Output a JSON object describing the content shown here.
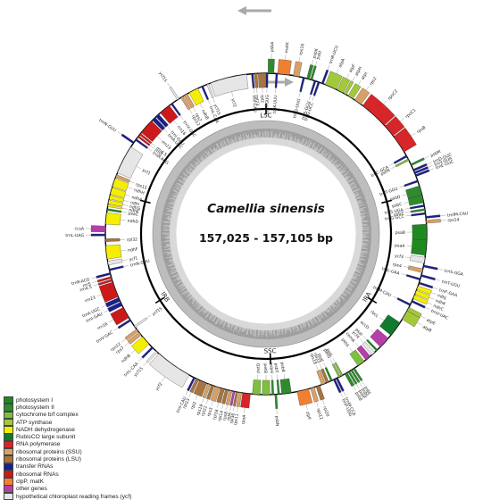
{
  "title": "Camellia sinensis",
  "size_label": "157,025 - 157,105 bp",
  "regions": {
    "lsc": "LSC",
    "ssc": "SSC",
    "ira": "IRA",
    "irb": "IRB"
  },
  "legend": [
    {
      "label": "photosystem I",
      "color": "#1f8a1f"
    },
    {
      "label": "photosystem II",
      "color": "#2e8b2e"
    },
    {
      "label": "cytochrome b/f complex",
      "color": "#7fbf3f"
    },
    {
      "label": "ATP synthase",
      "color": "#a3c93a"
    },
    {
      "label": "NADH dehydrogenase",
      "color": "#f5ee00"
    },
    {
      "label": "RubisCO large subunit",
      "color": "#117a2e"
    },
    {
      "label": "RNA polymerase",
      "color": "#d6262a"
    },
    {
      "label": "ribosomal proteins (SSU)",
      "color": "#d9a066"
    },
    {
      "label": "ribosomal proteins (LSU)",
      "color": "#a8743f"
    },
    {
      "label": "transfer RNAs",
      "color": "#1a1f8c"
    },
    {
      "label": "ribosomal RNAs",
      "color": "#cc1a1a"
    },
    {
      "label": "clpP, matK",
      "color": "#f08030"
    },
    {
      "label": "other genes",
      "color": "#b43fa8"
    },
    {
      "label": "hypothetical chloroplast reading frames (ycf)",
      "color": "#e6e6e6"
    }
  ],
  "genes": [
    {
      "name": "psbA",
      "a0": 1,
      "a1": 4,
      "out": true,
      "c": "#2e8b2e"
    },
    {
      "name": "trnH-GUG",
      "a0": 0,
      "a1": 1,
      "out": false,
      "c": "#1a1f8c"
    },
    {
      "name": "trnK-UUU",
      "a0": 5,
      "a1": 6,
      "out": false,
      "c": "#1a1f8c"
    },
    {
      "name": "matK",
      "a0": 6,
      "a1": 12,
      "out": true,
      "c": "#f08030"
    },
    {
      "name": "rps16",
      "a0": 14,
      "a1": 17,
      "out": true,
      "c": "#d9a066"
    },
    {
      "name": "trnQ-UUG",
      "a0": 19,
      "a1": 20,
      "out": false,
      "c": "#1a1f8c"
    },
    {
      "name": "psbK",
      "a0": 21,
      "a1": 22.5,
      "out": true,
      "c": "#2e8b2e"
    },
    {
      "name": "psbI",
      "a0": 23,
      "a1": 24,
      "out": true,
      "c": "#2e8b2e"
    },
    {
      "name": "trnS-GCU",
      "a0": 25,
      "a1": 26,
      "out": false,
      "c": "#1a1f8c"
    },
    {
      "name": "trnG-UCC",
      "a0": 27,
      "a1": 28,
      "out": false,
      "c": "#1a1f8c"
    },
    {
      "name": "trnR-UCU",
      "a0": 29,
      "a1": 30,
      "out": true,
      "c": "#1a1f8c"
    },
    {
      "name": "atpA",
      "a0": 31,
      "a1": 37,
      "out": true,
      "c": "#a3c93a"
    },
    {
      "name": "atpF",
      "a0": 37.5,
      "a1": 41,
      "out": true,
      "c": "#a3c93a"
    },
    {
      "name": "atpH",
      "a0": 41.5,
      "a1": 43,
      "out": true,
      "c": "#a3c93a"
    },
    {
      "name": "atpI",
      "a0": 44,
      "a1": 47,
      "out": true,
      "c": "#a3c93a"
    },
    {
      "name": "rps2",
      "a0": 48,
      "a1": 52,
      "out": true,
      "c": "#d9a066"
    },
    {
      "name": "rpoC2",
      "a0": 53,
      "a1": 68,
      "out": true,
      "c": "#d6262a"
    },
    {
      "name": "rpoC1",
      "a0": 68.5,
      "a1": 75,
      "out": true,
      "c": "#d6262a"
    },
    {
      "name": "rpoB",
      "a0": 75.5,
      "a1": 85,
      "out": true,
      "c": "#d6262a"
    },
    {
      "name": "trnC-GCA",
      "a0": 87,
      "a1": 88,
      "out": false,
      "c": "#1a1f8c"
    },
    {
      "name": "petN",
      "a0": 89,
      "a1": 90,
      "out": false,
      "c": "#7fbf3f"
    },
    {
      "name": "psbM",
      "a0": 92,
      "a1": 93,
      "out": true,
      "c": "#2e8b2e"
    },
    {
      "name": "trnD-GUC",
      "a0": 95,
      "a1": 96,
      "out": true,
      "c": "#1a1f8c"
    },
    {
      "name": "trnY-GUA",
      "a0": 96.5,
      "a1": 97.5,
      "out": true,
      "c": "#1a1f8c"
    },
    {
      "name": "trnE-UUC",
      "a0": 98,
      "a1": 99,
      "out": true,
      "c": "#1a1f8c"
    },
    {
      "name": "trnT-GGU",
      "a0": 101,
      "a1": 102,
      "out": false,
      "c": "#1a1f8c"
    },
    {
      "name": "psbD",
      "a0": 104,
      "a1": 109,
      "out": false,
      "c": "#2e8b2e"
    },
    {
      "name": "psbC",
      "a0": 109,
      "a1": 113,
      "out": false,
      "c": "#2e8b2e"
    },
    {
      "name": "trnS-UGA",
      "a0": 114,
      "a1": 115,
      "out": false,
      "c": "#1a1f8c"
    },
    {
      "name": "psbZ",
      "a0": 116,
      "a1": 117,
      "out": false,
      "c": "#2e8b2e"
    },
    {
      "name": "trnG-GCC",
      "a0": 118,
      "a1": 119,
      "out": false,
      "c": "#1a1f8c"
    },
    {
      "name": "trnfM-CAU",
      "a0": 120,
      "a1": 121,
      "out": true,
      "c": "#1a1f8c"
    },
    {
      "name": "rps14",
      "a0": 122,
      "a1": 123.5,
      "out": true,
      "c": "#d9a066"
    },
    {
      "name": "psaB",
      "a0": 124,
      "a1": 132,
      "out": false,
      "c": "#1f8a1f"
    },
    {
      "name": "psaA",
      "a0": 132,
      "a1": 140,
      "out": false,
      "c": "#1f8a1f"
    },
    {
      "name": "ycf3",
      "a0": 141,
      "a1": 144,
      "out": false,
      "c": "#e6e6e6"
    },
    {
      "name": "trnS-GGA",
      "a0": 145,
      "a1": 146,
      "out": true,
      "c": "#1a1f8c"
    },
    {
      "name": "rps4",
      "a0": 147,
      "a1": 149,
      "out": false,
      "c": "#d9a066"
    },
    {
      "name": "trnT-UGU",
      "a0": 150,
      "a1": 151,
      "out": true,
      "c": "#1a1f8c"
    },
    {
      "name": "trnL-UAA",
      "a0": 152,
      "a1": 153,
      "out": false,
      "c": "#1a1f8c"
    },
    {
      "name": "trnF-GAA",
      "a0": 154,
      "a1": 155,
      "out": true,
      "c": "#1a1f8c"
    },
    {
      "name": "ndhJ",
      "a0": 156,
      "a1": 158,
      "out": true,
      "c": "#f5ee00"
    },
    {
      "name": "ndhK",
      "a0": 158.5,
      "a1": 160.5,
      "out": true,
      "c": "#f5ee00"
    },
    {
      "name": "ndhC",
      "a0": 161,
      "a1": 163,
      "out": true,
      "c": "#f5ee00"
    },
    {
      "name": "trnV-UAC",
      "a0": 164,
      "a1": 165,
      "out": true,
      "c": "#1a1f8c"
    },
    {
      "name": "trnM-CAU",
      "a0": 166,
      "a1": 167,
      "out": false,
      "c": "#1a1f8c"
    },
    {
      "name": "atpE",
      "a0": 168,
      "a1": 170,
      "out": true,
      "c": "#a3c93a"
    },
    {
      "name": "atpB",
      "a0": 170,
      "a1": 175,
      "out": true,
      "c": "#a3c93a"
    },
    {
      "name": "rbcL",
      "a0": 177,
      "a1": 185,
      "out": false,
      "c": "#117a2e"
    },
    {
      "name": "accD",
      "a0": 187,
      "a1": 193,
      "out": false,
      "c": "#b43fa8"
    },
    {
      "name": "psaI",
      "a0": 195,
      "a1": 196,
      "out": false,
      "c": "#1f8a1f"
    },
    {
      "name": "ycf4",
      "a0": 197,
      "a1": 199,
      "out": false,
      "c": "#e6e6e6"
    },
    {
      "name": "cemA",
      "a0": 200,
      "a1": 203,
      "out": false,
      "c": "#b43fa8"
    },
    {
      "name": "petA",
      "a0": 204,
      "a1": 208,
      "out": false,
      "c": "#7fbf3f"
    },
    {
      "name": "psbJ",
      "a0": 210,
      "a1": 211,
      "out": true,
      "c": "#2e8b2e"
    },
    {
      "name": "psbL",
      "a0": 211.5,
      "a1": 212.5,
      "out": true,
      "c": "#2e8b2e"
    },
    {
      "name": "psbF",
      "a0": 213,
      "a1": 214,
      "out": true,
      "c": "#2e8b2e"
    },
    {
      "name": "psbE",
      "a0": 214.5,
      "a1": 216,
      "out": true,
      "c": "#2e8b2e"
    },
    {
      "name": "petL",
      "a0": 217,
      "a1": 218,
      "out": false,
      "c": "#7fbf3f"
    },
    {
      "name": "petG",
      "a0": 218.5,
      "a1": 219.5,
      "out": false,
      "c": "#7fbf3f"
    },
    {
      "name": "trnW-CCA",
      "a0": 220,
      "a1": 221,
      "out": true,
      "c": "#1a1f8c"
    },
    {
      "name": "trnP-UGG",
      "a0": 221.5,
      "a1": 222.5,
      "out": true,
      "c": "#1a1f8c"
    },
    {
      "name": "psaJ",
      "a0": 223,
      "a1": 224,
      "out": false,
      "c": "#1f8a1f"
    },
    {
      "name": "rpl33",
      "a0": 225,
      "a1": 226.5,
      "out": false,
      "c": "#a8743f"
    },
    {
      "name": "rps18",
      "a0": 227,
      "a1": 229,
      "out": false,
      "c": "#d9a066"
    },
    {
      "name": "rpl20",
      "a0": 230,
      "a1": 232,
      "out": true,
      "c": "#a8743f"
    },
    {
      "name": "rps12",
      "a0": 233,
      "a1": 235,
      "out": true,
      "c": "#d9a066"
    },
    {
      "name": "clpP",
      "a0": 236,
      "a1": 242,
      "out": true,
      "c": "#f08030"
    },
    {
      "name": "psbB",
      "a0": 245,
      "a1": 250,
      "out": false,
      "c": "#2e8b2e"
    },
    {
      "name": "psbT",
      "a0": 251,
      "a1": 252,
      "out": false,
      "c": "#2e8b2e"
    },
    {
      "name": "psbN",
      "a0": 252.5,
      "a1": 253.5,
      "out": true,
      "c": "#2e8b2e"
    },
    {
      "name": "psbH",
      "a0": 254,
      "a1": 255,
      "out": false,
      "c": "#2e8b2e"
    },
    {
      "name": "petB",
      "a0": 256,
      "a1": 260,
      "out": false,
      "c": "#7fbf3f"
    },
    {
      "name": "petD",
      "a0": 261,
      "a1": 265,
      "out": false,
      "c": "#7fbf3f"
    },
    {
      "name": "rpoA",
      "a0": 266,
      "a1": 270,
      "out": true,
      "c": "#d6262a"
    },
    {
      "name": "rps11",
      "a0": 270.5,
      "a1": 272,
      "out": true,
      "c": "#d9a066"
    },
    {
      "name": "rpl36",
      "a0": 272.5,
      "a1": 273.5,
      "out": true,
      "c": "#a8743f"
    },
    {
      "name": "infA",
      "a0": 274,
      "a1": 275,
      "out": true,
      "c": "#b43fa8"
    },
    {
      "name": "rps8",
      "a0": 275.5,
      "a1": 277,
      "out": true,
      "c": "#d9a066"
    },
    {
      "name": "rpl14",
      "a0": 277.5,
      "a1": 279,
      "out": true,
      "c": "#a8743f"
    },
    {
      "name": "rpl16",
      "a0": 279.5,
      "a1": 281.5,
      "out": true,
      "c": "#a8743f"
    },
    {
      "name": "rps3",
      "a0": 282,
      "a1": 284.5,
      "out": true,
      "c": "#d9a066"
    },
    {
      "name": "rpl22",
      "a0": 285,
      "a1": 286.5,
      "out": true,
      "c": "#a8743f"
    },
    {
      "name": "rps19",
      "a0": 287,
      "a1": 288.5,
      "out": true,
      "c": "#d9a066"
    },
    {
      "name": "rpl2",
      "a0": 289,
      "a1": 293,
      "out": true,
      "c": "#a8743f"
    },
    {
      "name": "rpl23",
      "a0": 293.5,
      "a1": 295,
      "out": true,
      "c": "#a8743f"
    },
    {
      "name": "trnI-CAU",
      "a0": 295.5,
      "a1": 296.5,
      "out": true,
      "c": "#1a1f8c"
    },
    {
      "name": "ycf2",
      "a0": 299,
      "a1": 318,
      "out": true,
      "c": "#e6e6e6"
    },
    {
      "name": "ycf15",
      "a0": 319,
      "a1": 320,
      "out": true,
      "c": "#e6e6e6"
    },
    {
      "name": "trnL-CAA",
      "a0": 322,
      "a1": 323,
      "out": true,
      "c": "#1a1f8c"
    },
    {
      "name": "ndhB",
      "a0": 325,
      "a1": 330,
      "out": true,
      "c": "#f5ee00"
    },
    {
      "name": "rps7",
      "a0": 331,
      "a1": 333,
      "out": true,
      "c": "#d9a066"
    },
    {
      "name": "rps12",
      "a0": 333.5,
      "a1": 335,
      "out": true,
      "c": "#d9a066"
    },
    {
      "name": "ycf15",
      "a0": 336,
      "a1": 337,
      "out": false,
      "c": "#e6e6e6"
    },
    {
      "name": "trnV-GAC",
      "a0": 340,
      "a1": 341,
      "out": true,
      "c": "#1a1f8c"
    },
    {
      "name": "rrn16",
      "a0": 342,
      "a1": 348,
      "out": true,
      "c": "#cc1a1a"
    },
    {
      "name": "trnI-GAU",
      "a0": 349,
      "a1": 351,
      "out": true,
      "c": "#1a1f8c"
    },
    {
      "name": "trnA-UGC",
      "a0": 351.5,
      "a1": 353.5,
      "out": true,
      "c": "#1a1f8c"
    },
    {
      "name": "rrn23",
      "a0": 354,
      "a1": 362,
      "out": true,
      "c": "#cc1a1a"
    },
    {
      "name": "rrn4.5",
      "a0": 362.5,
      "a1": 363.5,
      "out": true,
      "c": "#cc1a1a"
    },
    {
      "name": "rrn5",
      "a0": 364,
      "a1": 365,
      "out": true,
      "c": "#cc1a1a"
    },
    {
      "name": "trnR-ACG",
      "a0": 366,
      "a1": 367,
      "out": true,
      "c": "#1a1f8c"
    },
    {
      "name": "trnN-GUU",
      "a0": 368,
      "a1": 369,
      "out": false,
      "c": "#1a1f8c"
    },
    {
      "name": "ycf1",
      "a0": 371,
      "a1": 373,
      "out": false,
      "c": "#e6e6e6"
    },
    {
      "name": "ndhF",
      "a0": 374,
      "a1": 381,
      "out": false,
      "c": "#f5ee00"
    },
    {
      "name": "rpl32",
      "a0": 383,
      "a1": 384.5,
      "out": false,
      "c": "#a8743f"
    },
    {
      "name": "trnL-UAG",
      "a0": 386,
      "a1": 387,
      "out": true,
      "c": "#1a1f8c"
    },
    {
      "name": "ccsA",
      "a0": 388,
      "a1": 391,
      "out": true,
      "c": "#b43fa8"
    },
    {
      "name": "ndhD",
      "a0": 392,
      "a1": 398,
      "out": false,
      "c": "#f5ee00"
    },
    {
      "name": "psaC",
      "a0": 399,
      "a1": 400,
      "out": false,
      "c": "#1f8a1f"
    },
    {
      "name": "ndhE",
      "a0": 401,
      "a1": 402,
      "out": false,
      "c": "#f5ee00"
    },
    {
      "name": "ndhG",
      "a0": 402.5,
      "a1": 404.5,
      "out": false,
      "c": "#f5ee00"
    },
    {
      "name": "ndhI",
      "a0": 405,
      "a1": 407,
      "out": false,
      "c": "#f5ee00"
    },
    {
      "name": "ndhA",
      "a0": 407.5,
      "a1": 411,
      "out": false,
      "c": "#f5ee00"
    },
    {
      "name": "ndhH",
      "a0": 411.5,
      "a1": 416,
      "out": false,
      "c": "#f5ee00"
    },
    {
      "name": "rps15",
      "a0": 416.5,
      "a1": 418,
      "out": false,
      "c": "#d9a066"
    },
    {
      "name": "ycf1",
      "a0": 419,
      "a1": 434,
      "out": false,
      "c": "#e6e6e6"
    },
    {
      "name": "trnN-GUU",
      "a0": 436,
      "a1": 437,
      "out": true,
      "c": "#1a1f8c"
    },
    {
      "name": "trnR-ACG",
      "a0": 438,
      "a1": 439,
      "out": false,
      "c": "#1a1f8c"
    },
    {
      "name": "rrn5",
      "a0": 440,
      "a1": 441,
      "out": false,
      "c": "#cc1a1a"
    },
    {
      "name": "rrn4.5",
      "a0": 441.5,
      "a1": 442.5,
      "out": false,
      "c": "#cc1a1a"
    },
    {
      "name": "rrn23",
      "a0": 443,
      "a1": 451,
      "out": false,
      "c": "#cc1a1a"
    },
    {
      "name": "trnA-UGC",
      "a0": 451.5,
      "a1": 453.5,
      "out": false,
      "c": "#1a1f8c"
    },
    {
      "name": "trnI-GAU",
      "a0": 454,
      "a1": 456,
      "out": false,
      "c": "#1a1f8c"
    },
    {
      "name": "rrn16",
      "a0": 457,
      "a1": 463,
      "out": false,
      "c": "#cc1a1a"
    },
    {
      "name": "trnV-GAC",
      "a0": 464,
      "a1": 465,
      "out": false,
      "c": "#1a1f8c"
    },
    {
      "name": "ycf15",
      "a0": 468,
      "a1": 469,
      "out": true,
      "c": "#e6e6e6"
    },
    {
      "name": "rps12",
      "a0": 470,
      "a1": 471.5,
      "out": false,
      "c": "#d9a066"
    },
    {
      "name": "rps7",
      "a0": 472,
      "a1": 474,
      "out": false,
      "c": "#d9a066"
    },
    {
      "name": "ndhB",
      "a0": 475,
      "a1": 480,
      "out": false,
      "c": "#f5ee00"
    },
    {
      "name": "trnL-CAA",
      "a0": 482,
      "a1": 483,
      "out": false,
      "c": "#1a1f8c"
    },
    {
      "name": "ycf15",
      "a0": 485,
      "a1": 486,
      "out": false,
      "c": "#e6e6e6"
    },
    {
      "name": "ycf2",
      "a0": 487,
      "a1": 506,
      "out": false,
      "c": "#e6e6e6"
    },
    {
      "name": "trnI-CAU",
      "a0": 508.5,
      "a1": 509.5,
      "out": false,
      "c": "#1a1f8c"
    },
    {
      "name": "rpl23",
      "a0": 510,
      "a1": 511.5,
      "out": false,
      "c": "#a8743f"
    },
    {
      "name": "rpl2",
      "a0": 512,
      "a1": 516,
      "out": false,
      "c": "#a8743f"
    }
  ],
  "ticks": [
    0,
    30,
    60,
    90,
    120,
    150,
    180,
    210,
    240,
    270,
    300,
    330
  ],
  "arrows": [
    {
      "dir": "cw",
      "x": 270,
      "y": 12
    },
    {
      "dir": "ccw",
      "x": 325,
      "y": 92
    }
  ]
}
